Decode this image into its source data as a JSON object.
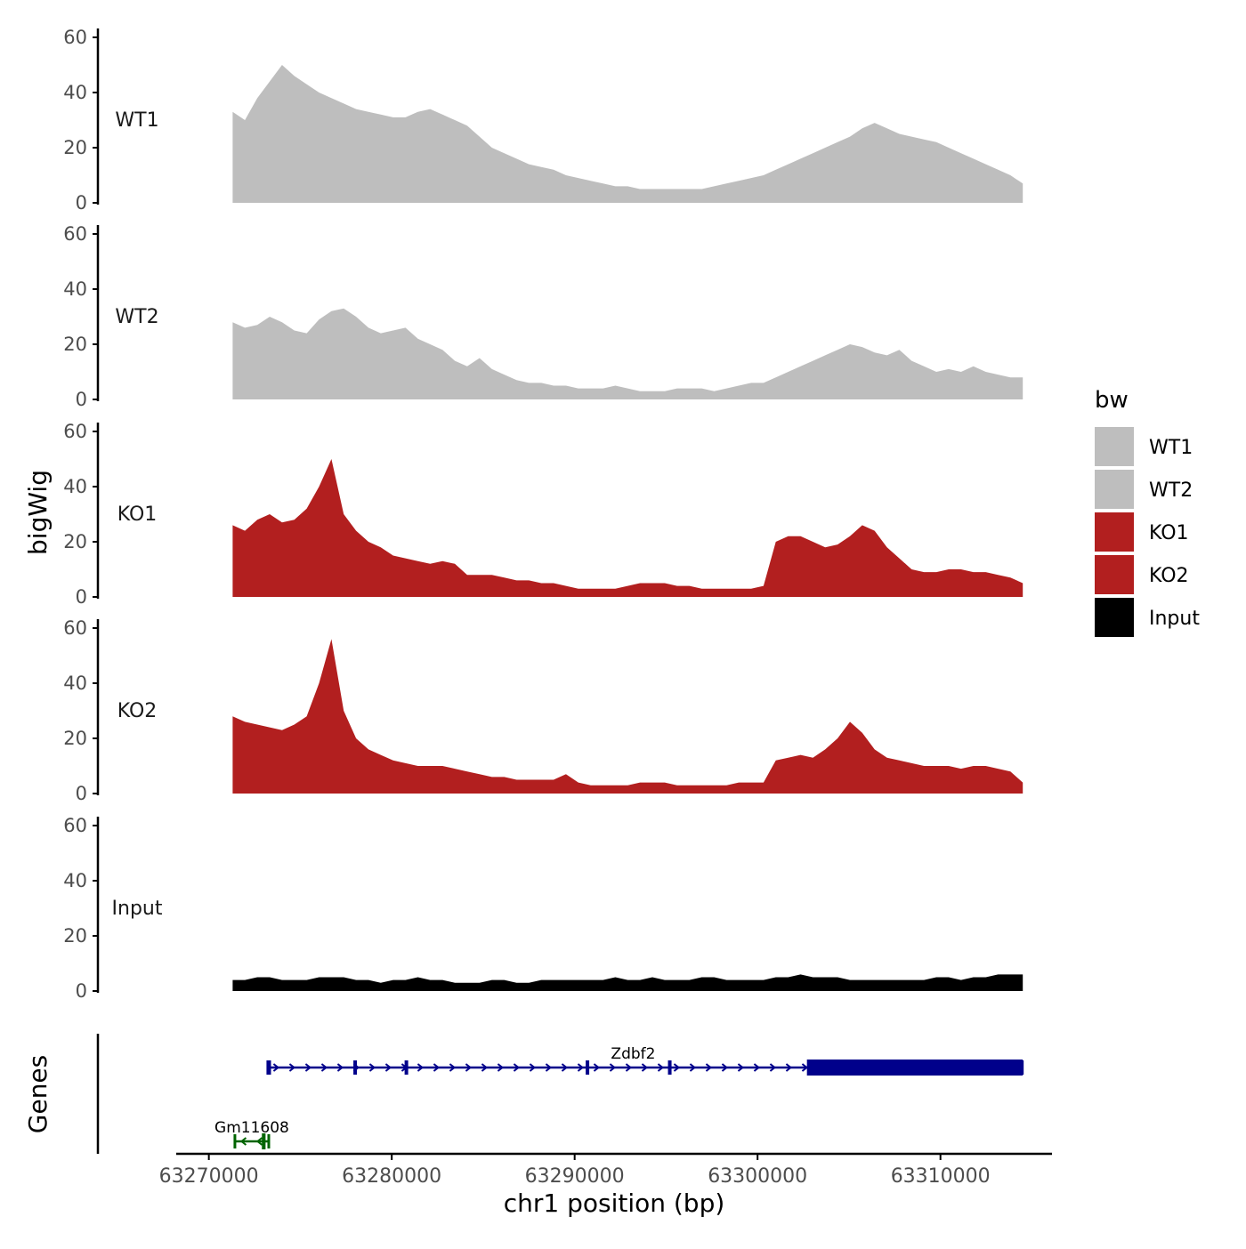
{
  "chart_data": {
    "type": "area",
    "xlabel": "chr1 position (bp)",
    "ylabel": "bigWig",
    "genes_label": "Genes",
    "xlim": [
      63268800,
      63316000
    ],
    "x_ticks": [
      63270000,
      63280000,
      63290000,
      63300000,
      63310000
    ],
    "x_tick_labels": [
      "63270000",
      "63280000",
      "63290000",
      "63300000",
      "63310000"
    ],
    "ylim": [
      0,
      60
    ],
    "y_ticks": [
      0,
      20,
      40,
      60
    ],
    "y_tick_labels": [
      "0",
      "20",
      "40",
      "60"
    ],
    "data_start": 63271300,
    "data_end": 63314500,
    "legend": {
      "title": "bw",
      "position": "right",
      "entries": [
        {
          "label": "WT1",
          "color": "#bebebe"
        },
        {
          "label": "WT2",
          "color": "#bebebe"
        },
        {
          "label": "KO1",
          "color": "#b21f1f"
        },
        {
          "label": "KO2",
          "color": "#b21f1f"
        },
        {
          "label": "Input",
          "color": "#000000"
        }
      ]
    },
    "series": [
      {
        "name": "WT1",
        "color": "#bebebe",
        "values": [
          33,
          30,
          38,
          44,
          50,
          46,
          43,
          40,
          38,
          36,
          34,
          33,
          32,
          31,
          31,
          33,
          34,
          32,
          30,
          28,
          24,
          20,
          18,
          16,
          14,
          13,
          12,
          10,
          9,
          8,
          7,
          6,
          6,
          5,
          5,
          5,
          5,
          5,
          5,
          6,
          7,
          8,
          9,
          10,
          12,
          14,
          16,
          18,
          20,
          22,
          24,
          27,
          29,
          27,
          25,
          24,
          23,
          22,
          20,
          18,
          16,
          14,
          12,
          10,
          7
        ]
      },
      {
        "name": "WT2",
        "color": "#bebebe",
        "values": [
          28,
          26,
          27,
          30,
          28,
          25,
          24,
          29,
          32,
          33,
          30,
          26,
          24,
          25,
          26,
          22,
          20,
          18,
          14,
          12,
          15,
          11,
          9,
          7,
          6,
          6,
          5,
          5,
          4,
          4,
          4,
          5,
          4,
          3,
          3,
          3,
          4,
          4,
          4,
          3,
          4,
          5,
          6,
          6,
          8,
          10,
          12,
          14,
          16,
          18,
          20,
          19,
          17,
          16,
          18,
          14,
          12,
          10,
          11,
          10,
          12,
          10,
          9,
          8,
          8
        ]
      },
      {
        "name": "KO1",
        "color": "#b21f1f",
        "values": [
          26,
          24,
          28,
          30,
          27,
          28,
          32,
          40,
          50,
          30,
          24,
          20,
          18,
          15,
          14,
          13,
          12,
          13,
          12,
          8,
          8,
          8,
          7,
          6,
          6,
          5,
          5,
          4,
          3,
          3,
          3,
          3,
          4,
          5,
          5,
          5,
          4,
          4,
          3,
          3,
          3,
          3,
          3,
          4,
          20,
          22,
          22,
          20,
          18,
          19,
          22,
          26,
          24,
          18,
          14,
          10,
          9,
          9,
          10,
          10,
          9,
          9,
          8,
          7,
          5
        ]
      },
      {
        "name": "KO2",
        "color": "#b21f1f",
        "values": [
          28,
          26,
          25,
          24,
          23,
          25,
          28,
          40,
          56,
          30,
          20,
          16,
          14,
          12,
          11,
          10,
          10,
          10,
          9,
          8,
          7,
          6,
          6,
          5,
          5,
          5,
          5,
          7,
          4,
          3,
          3,
          3,
          3,
          4,
          4,
          4,
          3,
          3,
          3,
          3,
          3,
          4,
          4,
          4,
          12,
          13,
          14,
          13,
          16,
          20,
          26,
          22,
          16,
          13,
          12,
          11,
          10,
          10,
          10,
          9,
          10,
          10,
          9,
          8,
          4
        ]
      },
      {
        "name": "Input",
        "color": "#000000",
        "values": [
          4,
          4,
          5,
          5,
          4,
          4,
          4,
          5,
          5,
          5,
          4,
          4,
          3,
          4,
          4,
          5,
          4,
          4,
          3,
          3,
          3,
          4,
          4,
          3,
          3,
          4,
          4,
          4,
          4,
          4,
          4,
          5,
          4,
          4,
          5,
          4,
          4,
          4,
          5,
          5,
          4,
          4,
          4,
          4,
          5,
          5,
          6,
          5,
          5,
          5,
          4,
          4,
          4,
          4,
          4,
          4,
          4,
          5,
          5,
          4,
          5,
          5,
          6,
          6,
          6
        ]
      }
    ],
    "genes": [
      {
        "name": "Zdbf2",
        "strand": "+",
        "color": "#00008b",
        "start": 63273200,
        "end": 63314500,
        "thick_start": 63302700,
        "thick_end": 63314500,
        "exons": [
          63273300,
          63278000,
          63280800,
          63290700,
          63295200
        ]
      },
      {
        "name": "Gm11608",
        "strand": "-",
        "color": "#006400",
        "start": 63271400,
        "end": 63273300,
        "thick_start": 63272900,
        "thick_end": 63273100,
        "exons": []
      }
    ]
  }
}
